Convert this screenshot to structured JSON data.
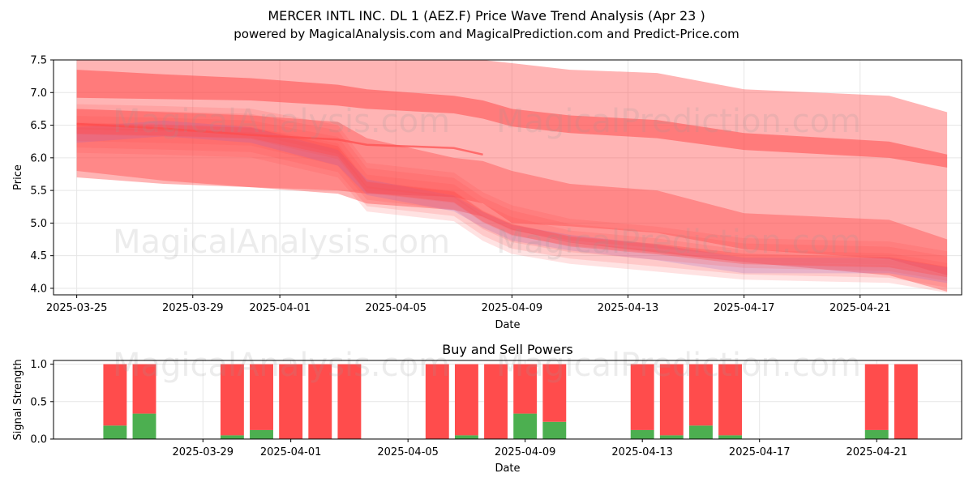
{
  "title_line1": "MERCER INTL INC.  DL 1 (AEZ.F) Price Wave Trend Analysis (Apr 23 )",
  "title_line2": "powered by MagicalAnalysis.com and MagicalPrediction.com and Predict-Price.com",
  "watermarks": [
    "MagicalAnalysis.com",
    "MagicalPrediction.com"
  ],
  "colors": {
    "red": "#ff4c4c",
    "green": "#4caf50",
    "blue": "#6e6eff"
  },
  "chart_data": [
    {
      "type": "area",
      "xlabel": "Date",
      "ylabel": "Price",
      "x_range": [
        "2025-03-25",
        "2025-04-24"
      ],
      "ylim": [
        3.9,
        7.5
      ],
      "yticks": [
        4.0,
        4.5,
        5.0,
        5.5,
        6.0,
        6.5,
        7.0,
        7.5
      ],
      "xtick_labels": [
        "2025-03-25",
        "2025-03-29",
        "2025-04-01",
        "2025-04-05",
        "2025-04-09",
        "2025-04-13",
        "2025-04-17",
        "2025-04-21"
      ],
      "grid": true,
      "dates": [
        "2025-03-25",
        "2025-03-28",
        "2025-03-31",
        "2025-04-03",
        "2025-04-04",
        "2025-04-07",
        "2025-04-08",
        "2025-04-09",
        "2025-04-11",
        "2025-04-14",
        "2025-04-17",
        "2025-04-22",
        "2025-04-24"
      ],
      "series": [
        {
          "upper": [
            7.55,
            7.55,
            7.55,
            7.55,
            7.55,
            7.55,
            7.5,
            7.45,
            7.35,
            7.3,
            7.05,
            6.95,
            6.7
          ],
          "lower": [
            5.7,
            5.6,
            5.55,
            5.5,
            5.45,
            5.4,
            5.3,
            5.0,
            4.95,
            4.85,
            4.6,
            4.45,
            4.2
          ]
        },
        {
          "upper": [
            7.35,
            7.28,
            7.22,
            7.12,
            7.05,
            6.95,
            6.88,
            6.75,
            6.65,
            6.58,
            6.38,
            6.25,
            6.05
          ],
          "lower": [
            6.92,
            6.9,
            6.88,
            6.8,
            6.75,
            6.68,
            6.6,
            6.48,
            6.38,
            6.3,
            6.12,
            6.0,
            5.85
          ]
        },
        {
          "upper": [
            6.75,
            6.7,
            6.65,
            6.55,
            6.3,
            6.0,
            5.95,
            5.8,
            5.6,
            5.5,
            5.15,
            5.05,
            4.75
          ],
          "lower": [
            5.8,
            5.65,
            5.55,
            5.45,
            5.3,
            5.2,
            5.1,
            4.9,
            4.7,
            4.55,
            4.4,
            4.2,
            3.95
          ]
        }
      ],
      "wave_mean": [
        6.45,
        6.42,
        6.38,
        6.1,
        5.55,
        5.4,
        5.1,
        4.9,
        4.72,
        4.6,
        4.45,
        4.4,
        4.25
      ],
      "wave_spread": [
        0.35,
        0.35,
        0.35,
        0.4,
        0.35,
        0.35,
        0.35,
        0.35,
        0.3,
        0.3,
        0.25,
        0.25,
        0.25
      ],
      "blue_path": [
        6.35,
        6.45,
        6.35,
        6.0,
        5.55,
        5.3,
        5.05,
        4.85,
        4.7,
        4.55,
        4.35,
        4.35,
        4.2
      ],
      "trend_line": [
        6.52,
        6.45,
        6.35,
        6.28,
        6.2,
        6.15,
        6.05
      ]
    },
    {
      "type": "bar",
      "title": "Buy and Sell Powers",
      "xlabel": "Date",
      "ylabel": "Signal Strength",
      "ylim": [
        0,
        1.05
      ],
      "yticks": [
        0.0,
        0.5,
        1.0
      ],
      "xtick_labels": [
        "2025-03-29",
        "2025-04-01",
        "2025-04-05",
        "2025-04-09",
        "2025-04-13",
        "2025-04-17",
        "2025-04-21"
      ],
      "dates": [
        "2025-03-26",
        "2025-03-27",
        "2025-03-30",
        "2025-03-31",
        "2025-04-01",
        "2025-04-02",
        "2025-04-03",
        "2025-04-06",
        "2025-04-07",
        "2025-04-08",
        "2025-04-09",
        "2025-04-10",
        "2025-04-13",
        "2025-04-14",
        "2025-04-15",
        "2025-04-16",
        "2025-04-21",
        "2025-04-22"
      ],
      "buy": [
        0.18,
        0.34,
        0.05,
        0.12,
        0.0,
        0.0,
        0.0,
        0.0,
        0.05,
        0.0,
        0.34,
        0.23,
        0.12,
        0.05,
        0.18,
        0.05,
        0.12,
        0.0
      ],
      "sell": [
        0.82,
        0.66,
        0.95,
        0.88,
        1.0,
        1.0,
        1.0,
        1.0,
        0.95,
        1.0,
        0.66,
        0.77,
        0.88,
        0.95,
        0.82,
        0.95,
        0.88,
        1.0
      ]
    }
  ]
}
